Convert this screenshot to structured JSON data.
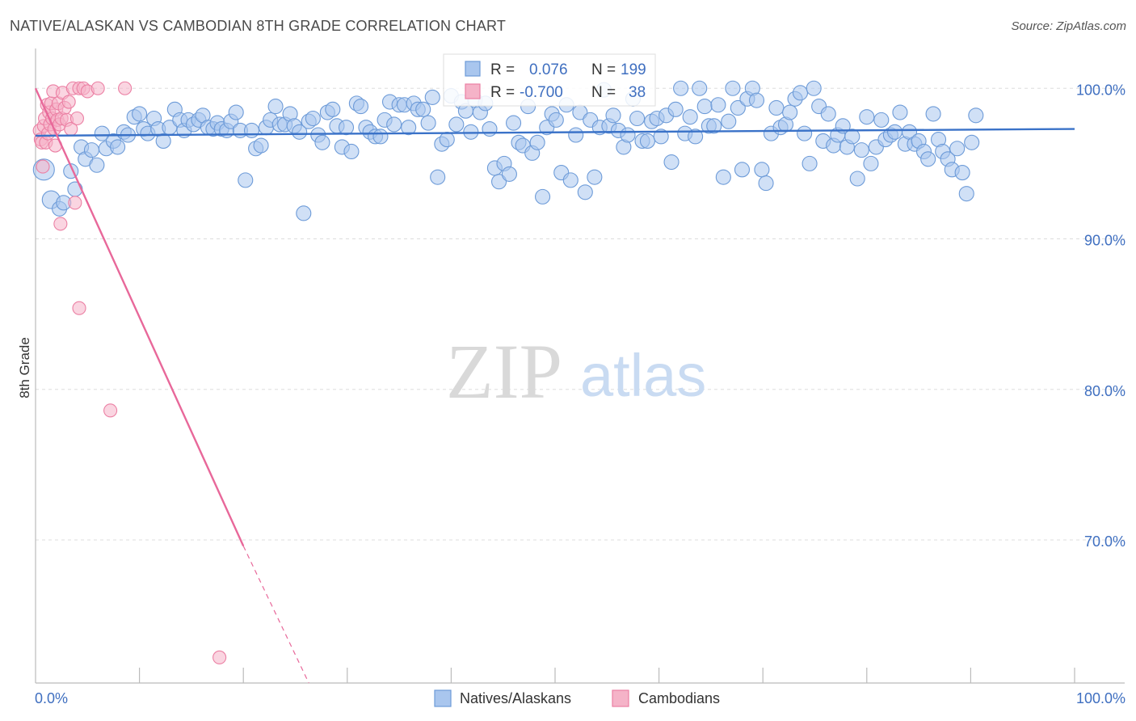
{
  "title": "NATIVE/ALASKAN VS CAMBODIAN 8TH GRADE CORRELATION CHART",
  "source": "Source: ZipAtlas.com",
  "watermark": {
    "zip": "ZIP",
    "atlas": "atlas"
  },
  "colors": {
    "blue_fill": "#a9c6ee",
    "blue_stroke": "#6d9bd8",
    "blue_line": "#3a72c8",
    "pink_fill": "#f5b3c8",
    "pink_stroke": "#eb7fa3",
    "pink_line": "#e8689a",
    "grid": "#dddddd",
    "axis": "#bbbbbb",
    "label_blue": "#3f6fc0"
  },
  "stats_box": {
    "rows": [
      {
        "r_label": "R =",
        "r_value": "0.076",
        "n_label": "N =",
        "n_value": "199",
        "series": "blue"
      },
      {
        "r_label": "R =",
        "r_value": "-0.700",
        "n_label": "N =",
        "n_value": "38",
        "series": "pink"
      }
    ]
  },
  "legend": [
    {
      "label": "Natives/Alaskans",
      "series": "blue"
    },
    {
      "label": "Cambodians",
      "series": "pink"
    }
  ],
  "chart_data": {
    "type": "scatter",
    "title": "NATIVE/ALASKAN VS CAMBODIAN 8TH GRADE CORRELATION CHART",
    "xlabel": "",
    "ylabel": "8th Grade",
    "xlim": [
      0,
      100
    ],
    "ylim": [
      60.5,
      102
    ],
    "x_tick_labels": [
      {
        "value": 0,
        "label": "0.0%"
      },
      {
        "value": 100,
        "label": "100.0%"
      }
    ],
    "y_tick_labels": [
      {
        "value": 100,
        "label": "100.0%"
      },
      {
        "value": 90,
        "label": "90.0%"
      },
      {
        "value": 80,
        "label": "80.0%"
      },
      {
        "value": 70,
        "label": "70.0%"
      }
    ],
    "x_minor_ticks": [
      10,
      20,
      30,
      40,
      50,
      60,
      70,
      80,
      90,
      100
    ],
    "grid": true,
    "series": [
      {
        "name": "Natives/Alaskans",
        "color": "blue",
        "trend": {
          "x0": 0,
          "y0": 96.85,
          "x1": 100,
          "y1": 97.3
        },
        "points": [
          [
            0.8,
            94.6,
            13
          ],
          [
            1.5,
            92.6,
            11
          ],
          [
            2.3,
            92.0,
            9
          ],
          [
            2.7,
            92.4,
            9
          ],
          [
            3.4,
            94.5,
            9
          ],
          [
            3.8,
            93.3,
            9
          ],
          [
            4.4,
            96.1,
            9
          ],
          [
            4.8,
            95.3,
            9
          ],
          [
            5.4,
            95.9,
            9
          ],
          [
            5.9,
            94.9,
            9
          ],
          [
            6.4,
            97.0,
            9
          ],
          [
            6.8,
            96.0,
            9
          ],
          [
            7.5,
            96.5,
            9
          ],
          [
            7.9,
            96.1,
            9
          ],
          [
            8.5,
            97.1,
            9
          ],
          [
            8.9,
            96.9,
            9
          ],
          [
            9.5,
            98.1,
            9
          ],
          [
            10.0,
            98.3,
            9
          ],
          [
            10.4,
            97.3,
            9
          ],
          [
            10.8,
            97.0,
            9
          ],
          [
            11.4,
            98.0,
            9
          ],
          [
            11.8,
            97.3,
            9
          ],
          [
            12.3,
            96.5,
            9
          ],
          [
            12.9,
            97.4,
            9
          ],
          [
            13.4,
            98.6,
            9
          ],
          [
            13.9,
            97.9,
            9
          ],
          [
            14.3,
            97.2,
            9
          ],
          [
            14.7,
            97.9,
            9
          ],
          [
            15.2,
            97.6,
            9
          ],
          [
            15.7,
            97.9,
            9
          ],
          [
            16.1,
            98.2,
            9
          ],
          [
            16.6,
            97.4,
            9
          ],
          [
            17.1,
            97.3,
            9
          ],
          [
            17.5,
            97.7,
            9
          ],
          [
            17.9,
            97.3,
            9
          ],
          [
            18.4,
            97.2,
            9
          ],
          [
            18.8,
            97.8,
            9
          ],
          [
            19.3,
            98.4,
            9
          ],
          [
            19.7,
            97.2,
            9
          ],
          [
            20.2,
            93.9,
            9
          ],
          [
            20.8,
            97.2,
            9
          ],
          [
            21.2,
            96.0,
            9
          ],
          [
            21.7,
            96.2,
            9
          ],
          [
            22.2,
            97.4,
            9
          ],
          [
            22.6,
            97.9,
            9
          ],
          [
            23.1,
            98.8,
            9
          ],
          [
            23.5,
            97.6,
            9
          ],
          [
            24.0,
            97.6,
            9
          ],
          [
            24.5,
            98.3,
            9
          ],
          [
            24.9,
            97.5,
            9
          ],
          [
            25.4,
            97.1,
            9
          ],
          [
            25.8,
            91.7,
            9
          ],
          [
            26.3,
            97.8,
            9
          ],
          [
            26.7,
            98.0,
            9
          ],
          [
            27.2,
            96.9,
            9
          ],
          [
            27.6,
            96.4,
            9
          ],
          [
            28.1,
            98.4,
            9
          ],
          [
            28.6,
            98.6,
            9
          ],
          [
            29.0,
            97.5,
            9
          ],
          [
            29.5,
            96.1,
            9
          ],
          [
            29.9,
            97.4,
            9
          ],
          [
            30.4,
            95.8,
            9
          ],
          [
            30.9,
            99.0,
            9
          ],
          [
            31.3,
            98.8,
            9
          ],
          [
            31.8,
            97.4,
            9
          ],
          [
            32.2,
            97.1,
            9
          ],
          [
            32.7,
            96.8,
            9
          ],
          [
            33.2,
            96.8,
            9
          ],
          [
            33.6,
            97.9,
            9
          ],
          [
            34.1,
            99.1,
            9
          ],
          [
            34.5,
            97.6,
            9
          ],
          [
            35.0,
            98.9,
            9
          ],
          [
            35.5,
            98.9,
            9
          ],
          [
            35.9,
            97.4,
            9
          ],
          [
            36.4,
            99.0,
            9
          ],
          [
            36.8,
            98.6,
            9
          ],
          [
            37.3,
            98.6,
            9
          ],
          [
            37.8,
            97.7,
            9
          ],
          [
            38.2,
            99.4,
            9
          ],
          [
            38.7,
            94.1,
            9
          ],
          [
            39.1,
            96.3,
            9
          ],
          [
            39.6,
            96.6,
            9
          ],
          [
            40.0,
            99.5,
            9
          ],
          [
            40.5,
            97.6,
            9
          ],
          [
            41.0,
            99.1,
            9
          ],
          [
            41.4,
            98.5,
            9
          ],
          [
            41.9,
            97.1,
            9
          ],
          [
            42.3,
            99.2,
            9
          ],
          [
            42.8,
            98.4,
            9
          ],
          [
            43.3,
            99.0,
            9
          ],
          [
            43.7,
            97.3,
            9
          ],
          [
            44.2,
            94.7,
            9
          ],
          [
            44.6,
            93.8,
            9
          ],
          [
            45.1,
            95.0,
            9
          ],
          [
            45.6,
            94.3,
            9
          ],
          [
            46.0,
            97.7,
            9
          ],
          [
            46.5,
            96.4,
            9
          ],
          [
            46.9,
            96.2,
            9
          ],
          [
            47.4,
            98.8,
            9
          ],
          [
            47.8,
            95.7,
            9
          ],
          [
            48.3,
            96.4,
            9
          ],
          [
            48.8,
            92.8,
            9
          ],
          [
            49.2,
            97.4,
            9
          ],
          [
            49.7,
            98.3,
            9
          ],
          [
            50.1,
            97.9,
            9
          ],
          [
            50.6,
            94.4,
            9
          ],
          [
            51.1,
            98.9,
            9
          ],
          [
            51.5,
            93.9,
            9
          ],
          [
            52.0,
            96.9,
            9
          ],
          [
            52.4,
            98.4,
            9
          ],
          [
            52.9,
            93.1,
            9
          ],
          [
            53.4,
            97.9,
            9
          ],
          [
            53.8,
            94.1,
            9
          ],
          [
            54.3,
            97.4,
            9
          ],
          [
            54.7,
            99.9,
            9
          ],
          [
            55.2,
            97.5,
            9
          ],
          [
            55.6,
            98.2,
            9
          ],
          [
            56.1,
            97.2,
            9
          ],
          [
            56.6,
            96.1,
            9
          ],
          [
            57.0,
            96.9,
            9
          ],
          [
            57.5,
            99.3,
            9
          ],
          [
            57.9,
            98.0,
            9
          ],
          [
            58.4,
            96.5,
            9
          ],
          [
            58.9,
            96.5,
            9
          ],
          [
            59.3,
            97.8,
            9
          ],
          [
            59.8,
            98.0,
            9
          ],
          [
            60.2,
            96.8,
            9
          ],
          [
            60.7,
            98.2,
            9
          ],
          [
            61.2,
            95.1,
            9
          ],
          [
            61.6,
            98.6,
            9
          ],
          [
            62.1,
            100.0,
            9
          ],
          [
            62.5,
            97.0,
            9
          ],
          [
            63.0,
            98.1,
            9
          ],
          [
            63.5,
            96.8,
            9
          ],
          [
            63.9,
            100.0,
            9
          ],
          [
            64.4,
            98.8,
            9
          ],
          [
            64.8,
            97.5,
            9
          ],
          [
            65.3,
            97.5,
            9
          ],
          [
            65.7,
            98.9,
            9
          ],
          [
            66.2,
            94.1,
            9
          ],
          [
            66.7,
            97.8,
            9
          ],
          [
            67.1,
            100.0,
            9
          ],
          [
            67.6,
            98.7,
            9
          ],
          [
            68.0,
            94.6,
            9
          ],
          [
            68.5,
            99.3,
            9
          ],
          [
            69.0,
            100.0,
            9
          ],
          [
            69.4,
            99.2,
            9
          ],
          [
            69.9,
            94.6,
            9
          ],
          [
            70.3,
            93.7,
            9
          ],
          [
            70.8,
            97.0,
            9
          ],
          [
            71.3,
            98.7,
            9
          ],
          [
            71.7,
            97.4,
            9
          ],
          [
            72.2,
            97.6,
            9
          ],
          [
            72.6,
            98.4,
            9
          ],
          [
            73.1,
            99.3,
            9
          ],
          [
            73.6,
            99.7,
            9
          ],
          [
            74.0,
            97.0,
            9
          ],
          [
            74.5,
            95.0,
            9
          ],
          [
            74.9,
            100.0,
            9
          ],
          [
            75.4,
            98.8,
            9
          ],
          [
            75.8,
            96.5,
            9
          ],
          [
            76.3,
            98.3,
            9
          ],
          [
            76.8,
            96.2,
            9
          ],
          [
            77.2,
            96.9,
            9
          ],
          [
            77.7,
            97.5,
            9
          ],
          [
            78.1,
            96.1,
            9
          ],
          [
            78.6,
            96.8,
            9
          ],
          [
            79.1,
            94.0,
            9
          ],
          [
            79.5,
            95.9,
            9
          ],
          [
            80.0,
            98.1,
            9
          ],
          [
            80.4,
            95.0,
            9
          ],
          [
            80.9,
            96.1,
            9
          ],
          [
            81.4,
            97.9,
            9
          ],
          [
            81.8,
            96.6,
            9
          ],
          [
            82.3,
            96.9,
            9
          ],
          [
            82.7,
            97.1,
            9
          ],
          [
            83.2,
            98.4,
            9
          ],
          [
            83.7,
            96.3,
            9
          ],
          [
            84.1,
            97.1,
            9
          ],
          [
            84.6,
            96.3,
            9
          ],
          [
            85.0,
            96.5,
            9
          ],
          [
            85.5,
            95.8,
            9
          ],
          [
            85.9,
            95.3,
            9
          ],
          [
            86.4,
            98.3,
            9
          ],
          [
            86.9,
            96.6,
            9
          ],
          [
            87.3,
            95.8,
            9
          ],
          [
            87.8,
            95.3,
            9
          ],
          [
            88.2,
            94.6,
            9
          ],
          [
            88.7,
            96.0,
            9
          ],
          [
            89.2,
            94.4,
            9
          ],
          [
            89.6,
            93.0,
            9
          ],
          [
            90.1,
            96.4,
            9
          ],
          [
            90.5,
            98.2,
            9
          ]
        ]
      },
      {
        "name": "Cambodians",
        "color": "pink",
        "trend": {
          "x0": 0,
          "y0": 100.0,
          "x1": 20.0,
          "y1": 69.6,
          "dash_x1": 26.3,
          "dash_y1": 60.5
        },
        "points": [
          [
            0.4,
            97.2,
            8
          ],
          [
            0.5,
            96.6,
            8
          ],
          [
            0.6,
            96.4,
            8
          ],
          [
            0.7,
            94.8,
            8
          ],
          [
            0.8,
            97.5,
            8
          ],
          [
            0.9,
            98.0,
            8
          ],
          [
            1.0,
            96.4,
            8
          ],
          [
            1.1,
            98.9,
            8
          ],
          [
            1.2,
            97.0,
            8
          ],
          [
            1.3,
            98.4,
            8
          ],
          [
            1.4,
            97.6,
            8
          ],
          [
            1.5,
            99.0,
            8
          ],
          [
            1.6,
            98.0,
            8
          ],
          [
            1.7,
            99.8,
            8
          ],
          [
            1.8,
            97.3,
            8
          ],
          [
            1.9,
            96.2,
            8
          ],
          [
            2.0,
            98.6,
            8
          ],
          [
            2.1,
            97.9,
            8
          ],
          [
            2.2,
            99.0,
            8
          ],
          [
            2.3,
            97.6,
            8
          ],
          [
            2.4,
            91.0,
            8
          ],
          [
            2.5,
            98.0,
            8
          ],
          [
            2.6,
            99.7,
            8
          ],
          [
            2.8,
            98.7,
            8
          ],
          [
            3.0,
            97.9,
            8
          ],
          [
            3.2,
            99.1,
            8
          ],
          [
            3.4,
            97.3,
            8
          ],
          [
            3.6,
            100.0,
            8
          ],
          [
            3.8,
            92.4,
            8
          ],
          [
            4.0,
            98.0,
            8
          ],
          [
            4.2,
            100.0,
            8
          ],
          [
            4.2,
            85.4,
            8
          ],
          [
            4.6,
            100.0,
            8
          ],
          [
            5.0,
            99.8,
            8
          ],
          [
            6.0,
            100.0,
            8
          ],
          [
            7.2,
            78.6,
            8
          ],
          [
            8.6,
            100.0,
            8
          ],
          [
            17.7,
            62.2,
            8
          ]
        ]
      }
    ]
  }
}
